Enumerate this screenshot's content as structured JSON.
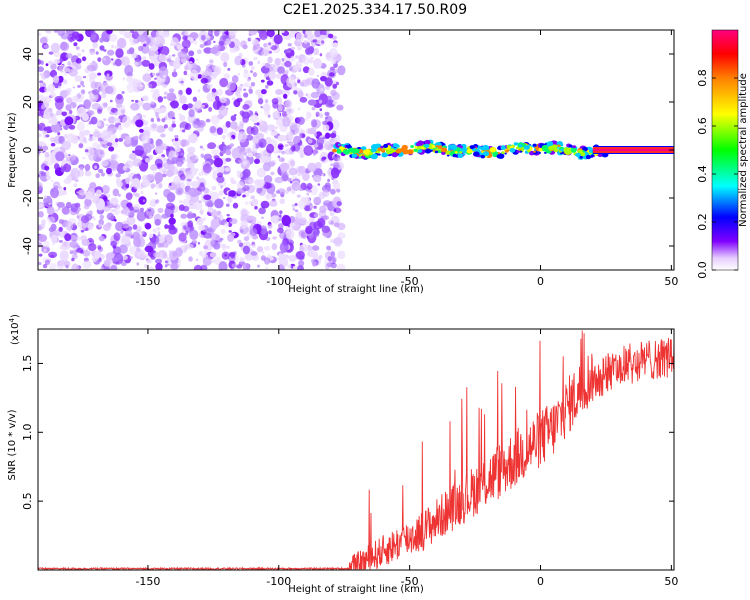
{
  "title": "C2E1.2025.334.17.50.R09",
  "chart_data": [
    {
      "type": "heatmap",
      "name": "spectrogram",
      "xlabel": "Height of straight line (km)",
      "ylabel": "Frequency (Hz)",
      "xlim": [
        -192,
        51
      ],
      "ylim": [
        -50,
        50
      ],
      "xticks": [
        -150,
        -100,
        -50,
        0,
        50
      ],
      "yticks": [
        -40,
        -20,
        0,
        20,
        40
      ],
      "noise_region_x": [
        -192,
        -76
      ],
      "signal_band_center_hz": 0,
      "colorbar": {
        "label": "Normalized spectral amplitude",
        "range": [
          0,
          1
        ],
        "ticks": [
          0.0,
          0.2,
          0.4,
          0.6,
          0.8
        ],
        "colors": [
          "#ffffff",
          "#e6ccff",
          "#8000ff",
          "#0000ff",
          "#00ffff",
          "#00ff00",
          "#ffff00",
          "#ff8000",
          "#ff0000",
          "#ff0080"
        ]
      }
    },
    {
      "type": "line",
      "name": "snr",
      "xlabel": "Height of straight line (km)",
      "ylabel": "SNR (10 * v/v)",
      "y_multiplier": "(x10",
      "y_multiplier_exp": "4",
      "xlim": [
        -192,
        51
      ],
      "ylim": [
        0,
        1.75
      ],
      "xticks": [
        -150,
        -100,
        -50,
        0,
        50
      ],
      "yticks": [
        0.5,
        1.0,
        1.5
      ],
      "ytick_labels": [
        "0.5",
        "1.0",
        "1.5"
      ],
      "color": "#ee3333",
      "trend": {
        "x": [
          -192,
          -73,
          -65,
          -55,
          -45,
          -35,
          -25,
          -15,
          -5,
          5,
          10,
          20,
          30,
          40,
          51
        ],
        "y": [
          0.01,
          0.01,
          0.1,
          0.2,
          0.3,
          0.45,
          0.6,
          0.75,
          0.9,
          1.05,
          1.2,
          1.45,
          1.55,
          1.6,
          1.62
        ]
      }
    }
  ]
}
